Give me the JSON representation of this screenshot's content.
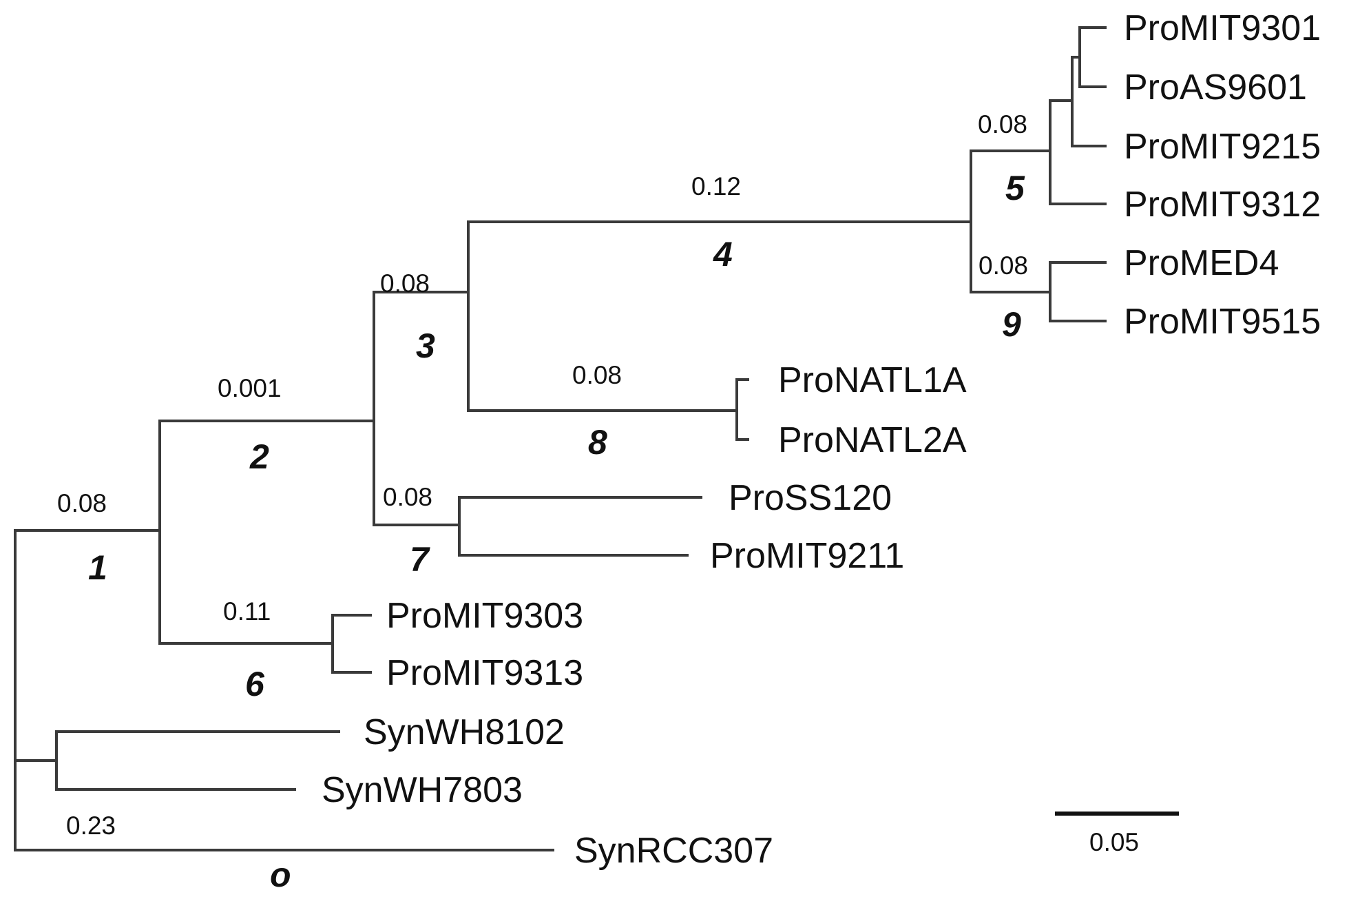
{
  "tree": {
    "leaves": {
      "mit9301": "ProMIT9301",
      "as9601": "ProAS9601",
      "mit9215": "ProMIT9215",
      "mit9312": "ProMIT9312",
      "med4": "ProMED4",
      "mit9515": "ProMIT9515",
      "natl1a": "ProNATL1A",
      "natl2a": "ProNATL2A",
      "ss120": "ProSS120",
      "mit9211": "ProMIT9211",
      "mit9303": "ProMIT9303",
      "mit9313": "ProMIT9313",
      "wh8102": "SynWH8102",
      "wh7803": "SynWH7803",
      "rcc307": "SynRCC307"
    },
    "branch_values": {
      "b1": "0.08",
      "b2": "0.001",
      "b3": "0.08",
      "b4": "0.12",
      "b5": "0.08",
      "b6": "0.11",
      "b7": "0.08",
      "b8": "0.08",
      "b9": "0.08",
      "b0": "0.23"
    },
    "node_ids": {
      "n1": "1",
      "n2": "2",
      "n3": "3",
      "n4": "4",
      "n5": "5",
      "n6": "6",
      "n7": "7",
      "n8": "8",
      "n9": "9",
      "n0": "o"
    },
    "scale_label": "0.05"
  }
}
